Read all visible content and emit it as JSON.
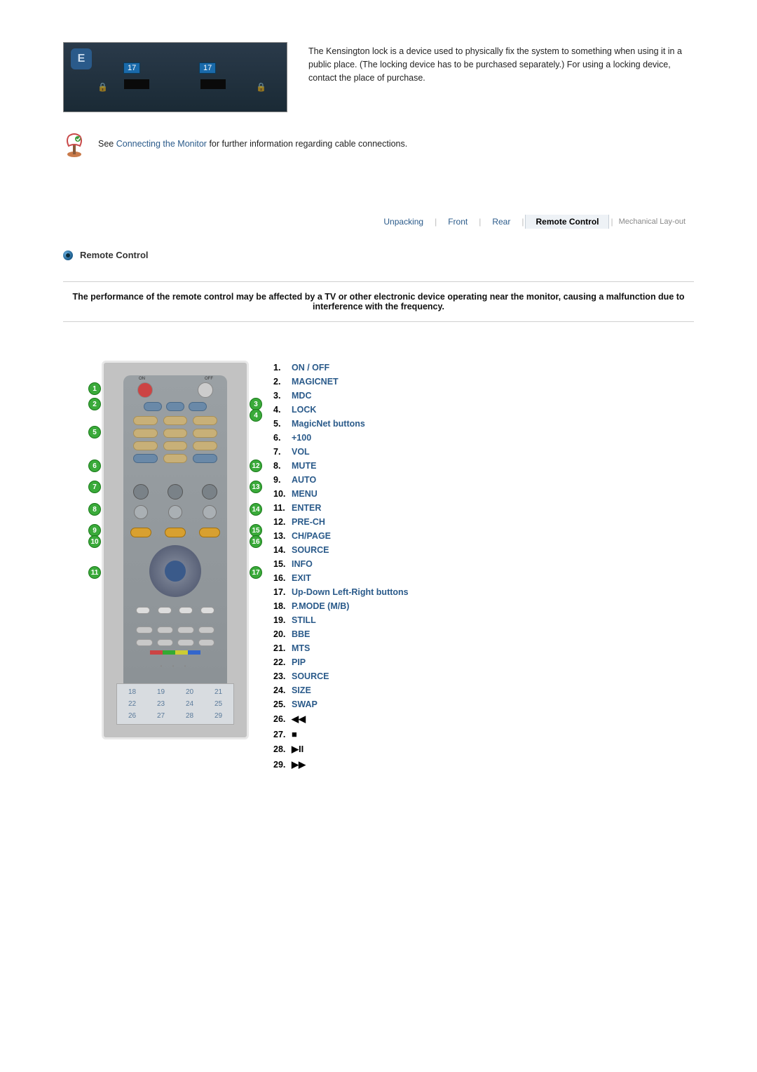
{
  "kensington": {
    "tag1": "17",
    "tag2": "17",
    "e_label": "E",
    "text": "The Kensington lock is a device used to physically fix the system to something when using it in a public place. (The locking device has to be purchased separately.) For using a locking device, contact the place of purchase."
  },
  "note": {
    "prefix": "See ",
    "link": "Connecting the Monitor",
    "suffix": " for further information regarding cable connections."
  },
  "tabs": {
    "items": [
      "Unpacking",
      "Front",
      "Rear",
      "Remote Control",
      "Mechanical Lay-out"
    ],
    "active_index": 3
  },
  "section_title": "Remote Control",
  "warning": "The performance of the remote control may be affected by a TV or other electronic device operating near the monitor, causing a malfunction due to interference with the frequency.",
  "remote": {
    "on_label": "ON",
    "off_label": "OFF",
    "left_callouts": [
      1,
      2,
      5,
      6,
      7,
      8,
      9,
      10,
      11
    ],
    "right_callouts": [
      3,
      4,
      12,
      13,
      14,
      15,
      16,
      17
    ],
    "bottom_numbers": [
      "18",
      "19",
      "20",
      "21",
      "22",
      "23",
      "24",
      "25",
      "26",
      "27",
      "28",
      "29"
    ]
  },
  "button_list": [
    {
      "label": "ON / OFF",
      "link": true
    },
    {
      "label": "MAGICNET",
      "link": true
    },
    {
      "label": "MDC",
      "link": true
    },
    {
      "label": "LOCK",
      "link": true
    },
    {
      "label": "MagicNet buttons",
      "link": true
    },
    {
      "label": "+100",
      "link": true
    },
    {
      "label": "VOL",
      "link": true
    },
    {
      "label": "MUTE",
      "link": true
    },
    {
      "label": "AUTO",
      "link": true
    },
    {
      "label": "MENU",
      "link": true
    },
    {
      "label": "ENTER",
      "link": true
    },
    {
      "label": "PRE-CH",
      "link": true
    },
    {
      "label": "CH/PAGE",
      "link": true
    },
    {
      "label": "SOURCE",
      "link": true
    },
    {
      "label": "INFO",
      "link": true
    },
    {
      "label": "EXIT",
      "link": true
    },
    {
      "label": "Up-Down Left-Right buttons",
      "link": true
    },
    {
      "label": "P.MODE (M/B)",
      "link": true
    },
    {
      "label": "STILL",
      "link": true
    },
    {
      "label": "BBE",
      "link": true
    },
    {
      "label": "MTS",
      "link": true
    },
    {
      "label": "PIP",
      "link": true
    },
    {
      "label": "SOURCE",
      "link": true
    },
    {
      "label": "SIZE",
      "link": true
    },
    {
      "label": "SWAP",
      "link": true
    },
    {
      "label": "◀◀",
      "link": false
    },
    {
      "label": "■",
      "link": false
    },
    {
      "label": "▶II",
      "link": false
    },
    {
      "label": "▶▶",
      "link": false
    }
  ]
}
